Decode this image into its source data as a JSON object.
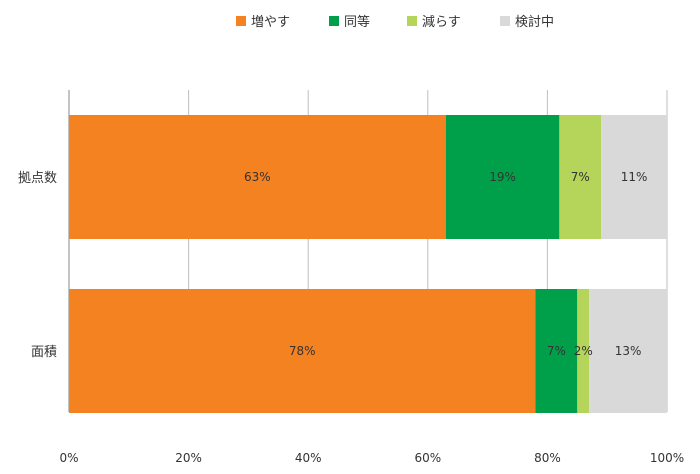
{
  "chart_data": {
    "type": "bar",
    "orientation": "horizontal",
    "stacked": true,
    "title": "",
    "xlabel": "",
    "ylabel": "",
    "xlim": [
      0,
      100
    ],
    "x_ticks": [
      0,
      20,
      40,
      60,
      80,
      100
    ],
    "x_tick_suffix": "%",
    "grid": true,
    "legend_position": "top",
    "categories": [
      "拠点数",
      "面積"
    ],
    "series": [
      {
        "name": "増やす",
        "color": "#F58220",
        "values": [
          63,
          78
        ]
      },
      {
        "name": "同等",
        "color": "#00A04B",
        "values": [
          19,
          7
        ]
      },
      {
        "name": "減らす",
        "color": "#B5D55A",
        "values": [
          7,
          2
        ]
      },
      {
        "name": "検討中",
        "color": "#D9D9D9",
        "values": [
          11,
          13
        ]
      }
    ]
  }
}
